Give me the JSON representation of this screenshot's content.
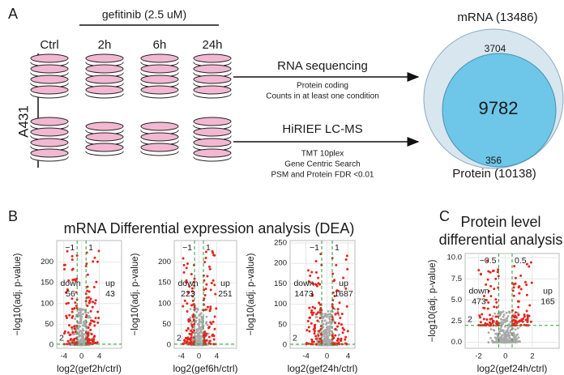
{
  "panel_a": {
    "label": "A",
    "treatment": "gefitinib (2.5 uM)",
    "conditions": [
      "Ctrl",
      "2h",
      "6h",
      "24h"
    ],
    "cell_line": "A431",
    "rna": {
      "title": "RNA sequencing",
      "notes": [
        "Protein coding",
        "Counts in at least one condition"
      ]
    },
    "ms": {
      "title": "HiRIEF LC-MS",
      "notes": [
        "TMT 10plex",
        "Gene Centric Search",
        "PSM and Protein FDR <0.01"
      ]
    },
    "venn": {
      "mrna_label": "mRNA (13486)",
      "protein_label": "Protein (10138)",
      "mrna_only": 3704,
      "both": 9782,
      "protein_only": 356
    }
  },
  "panel_b": {
    "label": "B",
    "title": "mRNA Differential expression analysis (DEA)",
    "plots": [
      {
        "xlabel": "log2(gef2h/ctrl)",
        "ylabel": "−log10(adj. p-value)",
        "down_label": "down",
        "down": 56,
        "up_label": "up",
        "up": 43,
        "xlim": [
          -5.6,
          9
        ],
        "xticks": [
          -4,
          0,
          4
        ],
        "ylim": [
          -8,
          252
        ],
        "yticks": [
          0,
          50,
          100,
          150,
          200
        ],
        "fc_lines": [
          {
            "value": -1,
            "label": "−1"
          },
          1
        ],
        "p_line": 2
      },
      {
        "xlabel": "log2(gef6h/ctrl)",
        "ylabel": "−log10(adj. p-value)",
        "down_label": "down",
        "down": 223,
        "up_label": "up",
        "up": 251,
        "xlim": [
          -5.6,
          8.5
        ],
        "xticks": [
          -4,
          0,
          4
        ],
        "ylim": [
          -8,
          252
        ],
        "yticks": [
          0,
          50,
          100,
          150,
          200
        ],
        "fc_lines": [
          {
            "value": -1,
            "label": "−1"
          },
          1
        ],
        "p_line": 2
      },
      {
        "xlabel": "log2(gef24h/ctrl)",
        "ylabel": "−log10(adj. p-value)",
        "down_label": "down",
        "down": 1473,
        "up_label": "up",
        "up": 1687,
        "xlim": [
          -7,
          5.3
        ],
        "xticks": [
          -4,
          0,
          4
        ],
        "ylim": [
          -8,
          256
        ],
        "yticks": [
          0,
          50,
          100,
          150,
          200,
          250
        ],
        "fc_lines": [
          {
            "value": -1,
            "label": "−1"
          },
          1
        ],
        "p_line": 2
      }
    ]
  },
  "panel_c": {
    "label": "C",
    "title": [
      "Protein level",
      "differential analysis"
    ],
    "plot": {
      "xlabel": "log2(gef24h/ctrl)",
      "ylabel": "−log10(adj. p-value)",
      "down_label": "down",
      "down": 473,
      "up_label": "up",
      "up": 165,
      "xlim": [
        -3.0,
        4.0
      ],
      "xticks": [
        -2,
        0,
        2
      ],
      "ylim": [
        -0.7,
        10.5
      ],
      "yticks": [
        {
          "value": 0,
          "label": "0.0"
        },
        2.5,
        {
          "value": 5,
          "label": "5.0"
        },
        7.5,
        {
          "value": 10,
          "label": "10.0"
        }
      ],
      "fc_lines": [
        {
          "value": -0.5,
          "label": "−0.5"
        },
        0.5
      ],
      "p_line": 2
    }
  }
}
